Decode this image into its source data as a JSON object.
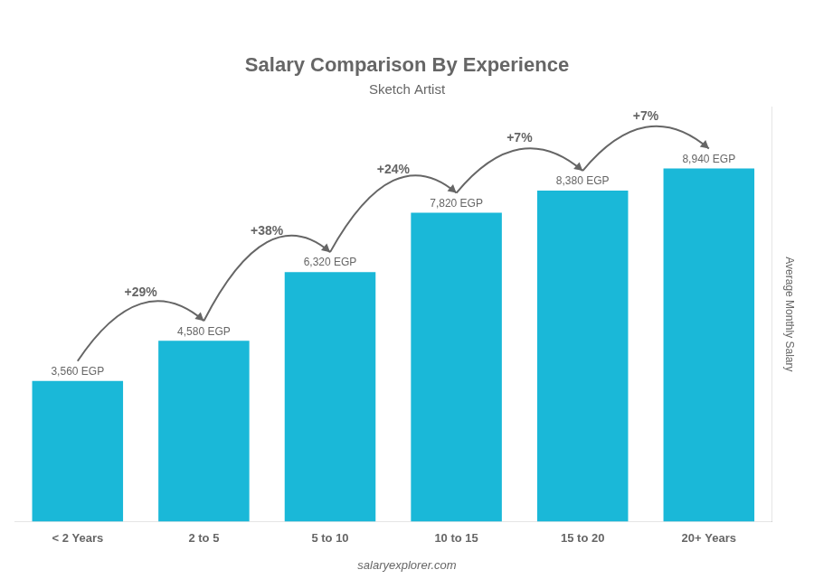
{
  "chart_data": {
    "type": "bar",
    "title": "Salary Comparison By Experience",
    "subtitle": "Sketch Artist",
    "categories": [
      "< 2 Years",
      "2 to 5",
      "5 to 10",
      "10 to 15",
      "15 to 20",
      "20+ Years"
    ],
    "values": [
      3560,
      4580,
      6320,
      7820,
      8380,
      8940
    ],
    "value_labels": [
      "3,560 EGP",
      "4,580 EGP",
      "6,320 EGP",
      "7,820 EGP",
      "8,380 EGP",
      "8,940 EGP"
    ],
    "data_labels": true,
    "annotations": [
      "+29%",
      "+38%",
      "+24%",
      "+7%",
      "+7%"
    ],
    "ylabel": "Average Monthly Salary",
    "footer": "salaryexplorer.com",
    "color": "#1ab8d8",
    "ylim": [
      0,
      10500
    ],
    "grid": false,
    "tick_labels": "x"
  }
}
